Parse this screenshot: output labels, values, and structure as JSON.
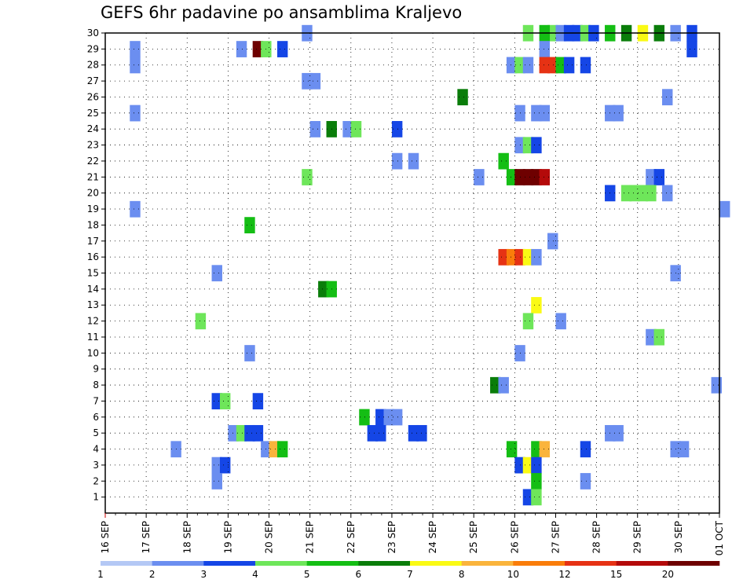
{
  "chart_data": {
    "type": "heatmap",
    "title": "GEFS 6hr padavine po ansamblima Kraljevo",
    "xlabel": "",
    "ylabel": "",
    "x_ticks": [
      "16 SEP",
      "17 SEP",
      "18 SEP",
      "19 SEP",
      "20 SEP",
      "21 SEP",
      "22 SEP",
      "23 SEP",
      "24 SEP",
      "25 SEP",
      "26 SEP",
      "27 SEP",
      "28 SEP",
      "29 SEP",
      "30 SEP",
      "01 OCT"
    ],
    "y_ticks": [
      1,
      2,
      3,
      4,
      5,
      6,
      7,
      8,
      9,
      10,
      11,
      12,
      13,
      14,
      15,
      16,
      17,
      18,
      19,
      20,
      21,
      22,
      23,
      24,
      25,
      26,
      27,
      28,
      29,
      30
    ],
    "xlim": [
      "16 SEP 00z",
      "01 OCT 00z"
    ],
    "ylim": [
      0,
      30
    ],
    "x_step": "6 hr",
    "grid": true,
    "legend": {
      "placement": "bottom",
      "levels": [
        "1",
        "2",
        "3",
        "4",
        "5",
        "6",
        "7",
        "8",
        "10",
        "12",
        "15",
        "20"
      ],
      "colors": [
        "#b4c8f5",
        "#6b8ef0",
        "#1546e6",
        "#6ee65a",
        "#14be14",
        "#0a7d0a",
        "#fafa14",
        "#fab43c",
        "#fa7d0a",
        "#e63214",
        "#b40a0a",
        "#6e0000"
      ]
    },
    "cells": [
      [
        4.8,
        30,
        1
      ],
      [
        10.2,
        30,
        3
      ],
      [
        10.8,
        30,
        3
      ],
      [
        10.6,
        30,
        4
      ],
      [
        11.0,
        30,
        1
      ],
      [
        11.2,
        30,
        2
      ],
      [
        11.4,
        30,
        2
      ],
      [
        11.6,
        30,
        3
      ],
      [
        11.8,
        30,
        2
      ],
      [
        12.2,
        30,
        4
      ],
      [
        12.6,
        30,
        5
      ],
      [
        13.0,
        30,
        6
      ],
      [
        13.4,
        30,
        5
      ],
      [
        13.8,
        30,
        1
      ],
      [
        14.2,
        30,
        2
      ],
      [
        0.6,
        29,
        1
      ],
      [
        3.2,
        29,
        1
      ],
      [
        3.6,
        29,
        11
      ],
      [
        3.8,
        29,
        3
      ],
      [
        4.2,
        29,
        2
      ],
      [
        10.6,
        29,
        1
      ],
      [
        14.2,
        29,
        2
      ],
      [
        0.6,
        28,
        1
      ],
      [
        9.8,
        28,
        1
      ],
      [
        10.0,
        28,
        3
      ],
      [
        10.2,
        28,
        1
      ],
      [
        10.6,
        28,
        9
      ],
      [
        10.8,
        28,
        9
      ],
      [
        11.0,
        28,
        4
      ],
      [
        11.2,
        28,
        2
      ],
      [
        11.6,
        28,
        2
      ],
      [
        4.8,
        27,
        1
      ],
      [
        5.0,
        27,
        1
      ],
      [
        8.6,
        26,
        5
      ],
      [
        13.6,
        26,
        1
      ],
      [
        0.6,
        25,
        1
      ],
      [
        10.0,
        25,
        1
      ],
      [
        10.4,
        25,
        1
      ],
      [
        10.6,
        25,
        1
      ],
      [
        12.2,
        25,
        1
      ],
      [
        12.4,
        25,
        1
      ],
      [
        5.0,
        24,
        1
      ],
      [
        5.4,
        24,
        5
      ],
      [
        5.8,
        24,
        1
      ],
      [
        6.0,
        24,
        3
      ],
      [
        7.0,
        24,
        2
      ],
      [
        10.0,
        23,
        1
      ],
      [
        10.2,
        23,
        3
      ],
      [
        10.4,
        23,
        2
      ],
      [
        7.0,
        22,
        1
      ],
      [
        7.4,
        22,
        1
      ],
      [
        9.6,
        22,
        4
      ],
      [
        4.8,
        21,
        3
      ],
      [
        9.0,
        21,
        1
      ],
      [
        9.8,
        21,
        4
      ],
      [
        10.0,
        21,
        11
      ],
      [
        10.2,
        21,
        11
      ],
      [
        10.4,
        21,
        11
      ],
      [
        10.6,
        21,
        10
      ],
      [
        13.2,
        21,
        1
      ],
      [
        13.4,
        21,
        2
      ],
      [
        12.2,
        20,
        2
      ],
      [
        12.6,
        20,
        3
      ],
      [
        12.8,
        20,
        3
      ],
      [
        13.0,
        20,
        3
      ],
      [
        13.2,
        20,
        3
      ],
      [
        13.6,
        20,
        1
      ],
      [
        0.6,
        19,
        1
      ],
      [
        15.0,
        19,
        1
      ],
      [
        3.4,
        18,
        4
      ],
      [
        10.8,
        17,
        1
      ],
      [
        9.6,
        16,
        9
      ],
      [
        9.8,
        16,
        8
      ],
      [
        10.0,
        16,
        9
      ],
      [
        10.2,
        16,
        6
      ],
      [
        10.4,
        16,
        1
      ],
      [
        2.6,
        15,
        1
      ],
      [
        13.8,
        15,
        1
      ],
      [
        5.2,
        14,
        5
      ],
      [
        5.4,
        14,
        4
      ],
      [
        10.4,
        13,
        6
      ],
      [
        2.2,
        12,
        3
      ],
      [
        10.2,
        12,
        3
      ],
      [
        11.0,
        12,
        1
      ],
      [
        13.2,
        11,
        1
      ],
      [
        13.4,
        11,
        3
      ],
      [
        3.4,
        10,
        1
      ],
      [
        10.0,
        10,
        1
      ],
      [
        9.4,
        8,
        5
      ],
      [
        9.6,
        8,
        1
      ],
      [
        14.8,
        8,
        1
      ],
      [
        2.6,
        7,
        2
      ],
      [
        2.8,
        7,
        3
      ],
      [
        3.6,
        7,
        2
      ],
      [
        6.2,
        6,
        4
      ],
      [
        6.6,
        6,
        2
      ],
      [
        6.8,
        6,
        1
      ],
      [
        7.0,
        6,
        1
      ],
      [
        3.0,
        5,
        1
      ],
      [
        3.2,
        5,
        3
      ],
      [
        3.4,
        5,
        2
      ],
      [
        3.6,
        5,
        2
      ],
      [
        6.4,
        5,
        2
      ],
      [
        6.6,
        5,
        2
      ],
      [
        7.4,
        5,
        2
      ],
      [
        7.6,
        5,
        2
      ],
      [
        12.2,
        5,
        1
      ],
      [
        12.4,
        5,
        1
      ],
      [
        1.6,
        4,
        1
      ],
      [
        3.8,
        4,
        1
      ],
      [
        4.0,
        4,
        7
      ],
      [
        4.2,
        4,
        4
      ],
      [
        9.8,
        4,
        4
      ],
      [
        10.4,
        4,
        4
      ],
      [
        10.6,
        4,
        7
      ],
      [
        11.6,
        4,
        2
      ],
      [
        13.8,
        4,
        1
      ],
      [
        14.0,
        4,
        1
      ],
      [
        2.6,
        3,
        1
      ],
      [
        2.8,
        3,
        2
      ],
      [
        10.0,
        3,
        2
      ],
      [
        10.2,
        3,
        6
      ],
      [
        10.4,
        3,
        2
      ],
      [
        2.6,
        2,
        1
      ],
      [
        10.4,
        2,
        4
      ],
      [
        11.6,
        2,
        1
      ],
      [
        10.2,
        1,
        2
      ],
      [
        10.4,
        1,
        3
      ]
    ]
  }
}
